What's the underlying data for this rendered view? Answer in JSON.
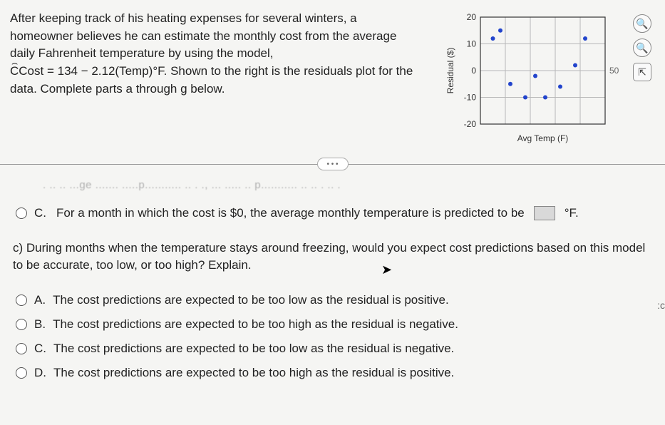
{
  "prompt": {
    "text1": "After keeping track of his heating expenses for several winters, a homeowner believes he can estimate the monthly cost from the average daily Fahrenheit temperature by using the model,",
    "formula": "Cost = 134 − 2.12(Temp)°F.",
    "text2": "Shown to the right is the residuals plot for the data. Complete parts a through g below."
  },
  "chart": {
    "type": "scatter",
    "xlabel": "Avg Temp (F)",
    "ylabel": "Residual ($)",
    "xlim": [
      0,
      50
    ],
    "ylim": [
      -20,
      20
    ],
    "ytick_step": 10,
    "y_ticks": [
      -20,
      -10,
      0,
      10,
      20
    ],
    "x_end_label": "50",
    "grid_color": "#b8b8b8",
    "axis_color": "#333333",
    "point_color": "#2244cc",
    "background": "#f5f5f3",
    "points": [
      {
        "x": 5,
        "y": 12
      },
      {
        "x": 8,
        "y": 15
      },
      {
        "x": 12,
        "y": -5
      },
      {
        "x": 18,
        "y": -10
      },
      {
        "x": 22,
        "y": -2
      },
      {
        "x": 26,
        "y": -10
      },
      {
        "x": 32,
        "y": -6
      },
      {
        "x": 38,
        "y": 2
      },
      {
        "x": 42,
        "y": 12
      }
    ],
    "label_fontsize": 12
  },
  "option_c_top": {
    "letter": "C.",
    "text_before": "For a month in which the cost is $0, the average monthly temperature is predicted to be",
    "text_after": "°F."
  },
  "question_c": {
    "text": "c) During months when the temperature stays around freezing, would you expect cost predictions based on this model to be accurate, too low, or too high? Explain."
  },
  "options": [
    {
      "letter": "A.",
      "text": "The cost predictions are expected to be too low as the residual is positive."
    },
    {
      "letter": "B.",
      "text": "The cost predictions are expected to be too high as the residual is negative."
    },
    {
      "letter": "C.",
      "text": "The cost predictions are expected to be too low as the residual is negative."
    },
    {
      "letter": "D.",
      "text": "The cost predictions are expected to be too high as the residual is positive."
    }
  ],
  "faded": ". .. .. ...ge ....... .....p........... .. . ., ... ..... .. p........... .. .. . .. .",
  "edge_cut": ":c"
}
